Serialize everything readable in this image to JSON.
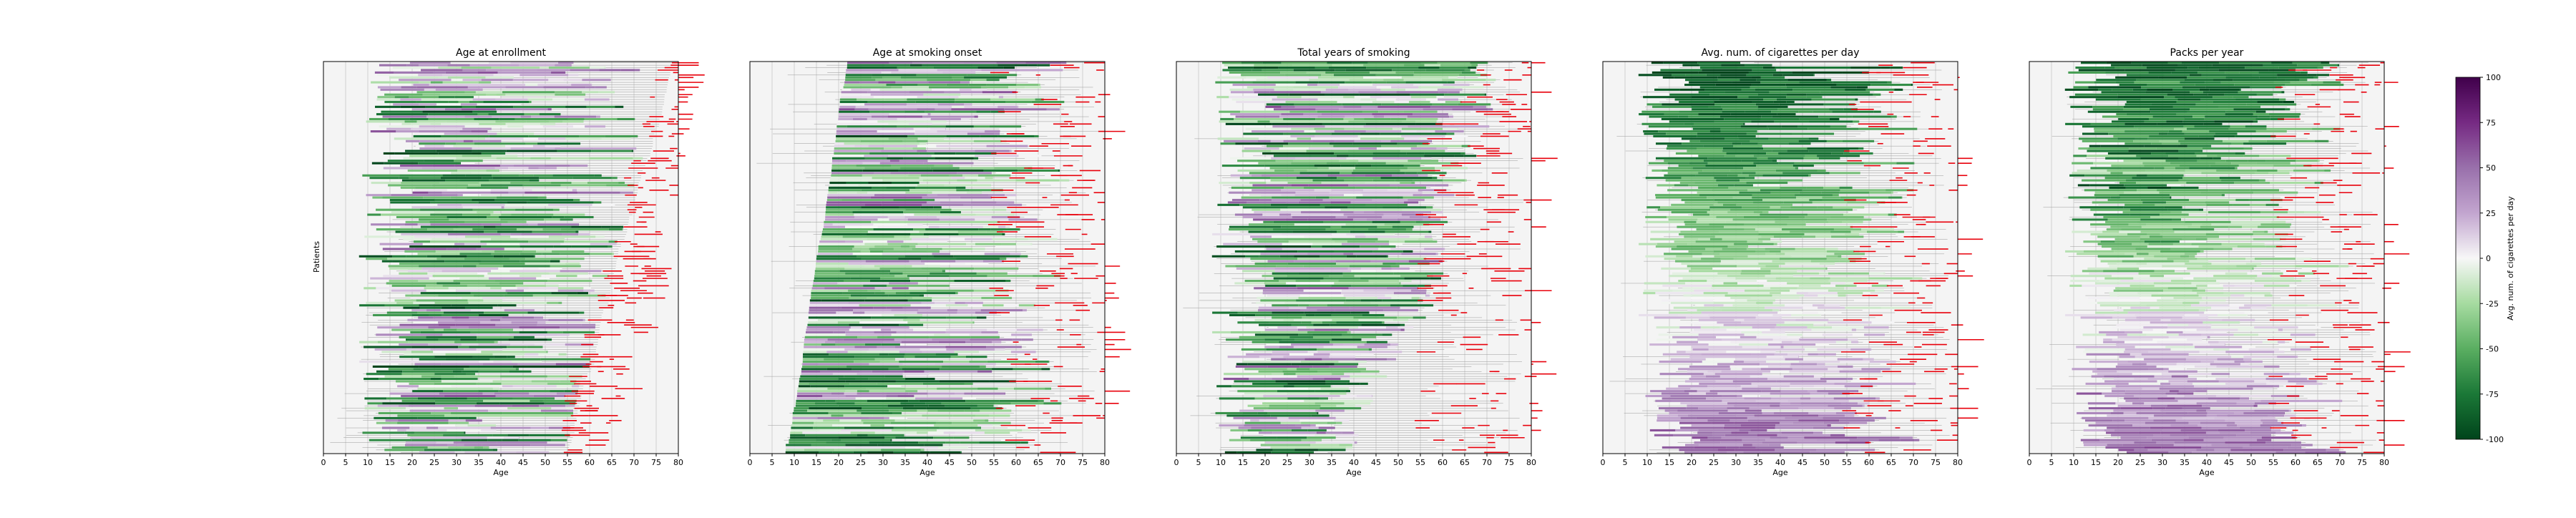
{
  "figure": {
    "y_axis_label": "Patients",
    "colorbar": {
      "label": "Avg. num. of cigarettes per day",
      "ticks": [
        100,
        75,
        50,
        25,
        0,
        -25,
        -50,
        -75,
        -100
      ],
      "range": [
        -100,
        100
      ],
      "colormap": "PRGn",
      "color_low": "#00441b",
      "color_mid": "#f7f7f7",
      "color_high": "#40004b"
    },
    "event_color": "#e8000b"
  },
  "chart_data": [
    {
      "type": "timeline",
      "title": "Age at enrollment",
      "xlabel": "Age",
      "ylabel": "Patients",
      "xlim": [
        0,
        80
      ],
      "xticks": [
        0,
        5,
        10,
        15,
        20,
        25,
        30,
        35,
        40,
        45,
        50,
        55,
        60,
        65,
        70,
        75,
        80
      ],
      "grid": true,
      "sort": "enrollment",
      "num_patients": 160
    },
    {
      "type": "timeline",
      "title": "Age at smoking onset",
      "xlabel": "Age",
      "xlim": [
        0,
        80
      ],
      "xticks": [
        0,
        5,
        10,
        15,
        20,
        25,
        30,
        35,
        40,
        45,
        50,
        55,
        60,
        65,
        70,
        75,
        80
      ],
      "grid": true,
      "sort": "onset",
      "num_patients": 160
    },
    {
      "type": "timeline",
      "title": "Total years of smoking",
      "xlabel": "Age",
      "xlim": [
        0,
        80
      ],
      "xticks": [
        0,
        5,
        10,
        15,
        20,
        25,
        30,
        35,
        40,
        45,
        50,
        55,
        60,
        65,
        70,
        75,
        80
      ],
      "grid": true,
      "sort": "duration",
      "num_patients": 160
    },
    {
      "type": "timeline",
      "title": "Avg. num. of cigarettes per day",
      "xlabel": "Age",
      "xlim": [
        0,
        80
      ],
      "xticks": [
        0,
        5,
        10,
        15,
        20,
        25,
        30,
        35,
        40,
        45,
        50,
        55,
        60,
        65,
        70,
        75,
        80
      ],
      "grid": true,
      "sort": "cigarettes",
      "num_patients": 160
    },
    {
      "type": "timeline",
      "title": "Packs per year",
      "xlabel": "Age",
      "xlim": [
        0,
        80
      ],
      "xticks": [
        0,
        5,
        10,
        15,
        20,
        25,
        30,
        35,
        40,
        45,
        50,
        55,
        60,
        65,
        70,
        75,
        80
      ],
      "grid": true,
      "sort": "packs",
      "num_patients": 160
    }
  ]
}
